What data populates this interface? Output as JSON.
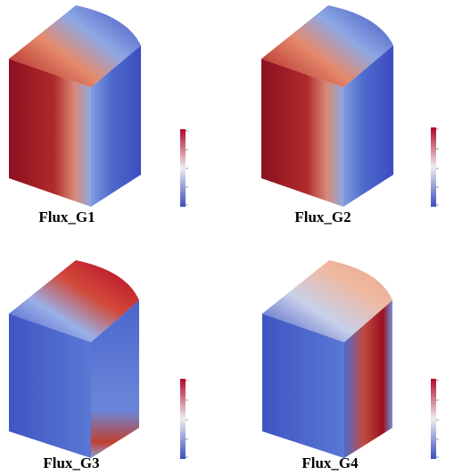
{
  "panels": [
    {
      "label": "Flux_G1"
    },
    {
      "label": "Flux_G2"
    },
    {
      "label": "Flux_G3"
    },
    {
      "label": "Flux_G4"
    }
  ]
}
